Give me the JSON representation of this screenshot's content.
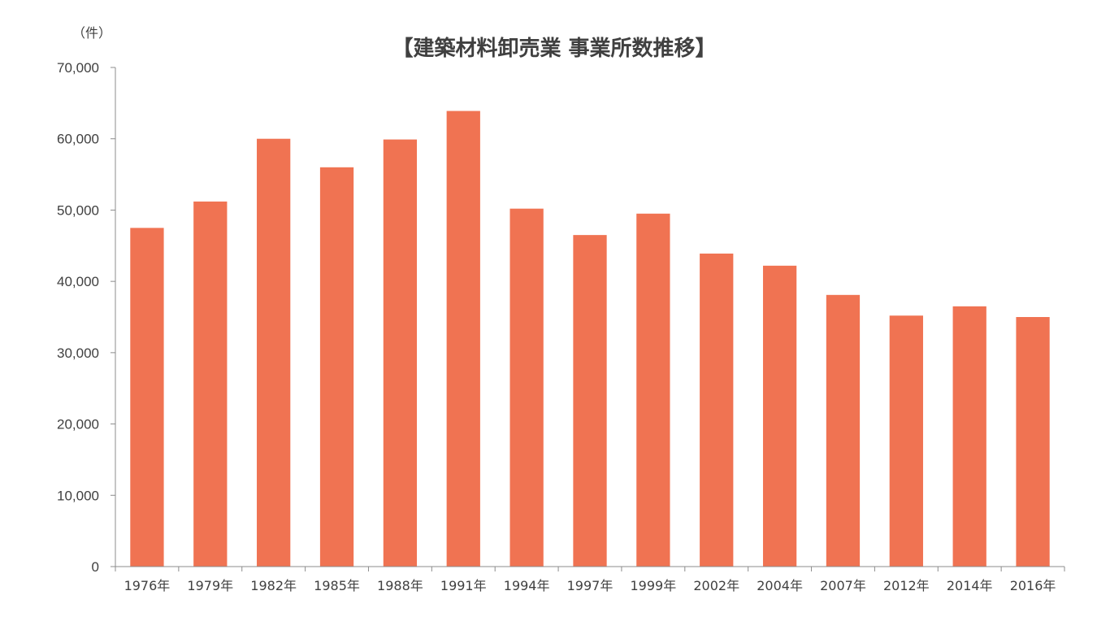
{
  "chart_data": {
    "type": "bar",
    "title": "【建築材料卸売業 事業所数推移】",
    "ylabel": "（件）",
    "xlabel": "",
    "categories": [
      "1976年",
      "1979年",
      "1982年",
      "1985年",
      "1988年",
      "1991年",
      "1994年",
      "1997年",
      "1999年",
      "2002年",
      "2004年",
      "2007年",
      "2012年",
      "2014年",
      "2016年"
    ],
    "series": [
      {
        "values": [
          47500,
          51200,
          60000,
          56000,
          59900,
          63900,
          50200,
          46500,
          49500,
          43900,
          42200,
          38100,
          35200,
          36500,
          35000
        ]
      }
    ],
    "ylim": [
      0,
      70000
    ],
    "yticks": [
      0,
      10000,
      20000,
      30000,
      40000,
      50000,
      60000,
      70000
    ],
    "ytick_labels": [
      "0",
      "10,000",
      "20,000",
      "30,000",
      "40,000",
      "50,000",
      "60,000",
      "70,000"
    ],
    "grid": false,
    "legend": "none",
    "colors": {
      "bar": "#F07352",
      "axis": "#8C8C8C",
      "text": "#404040"
    }
  }
}
